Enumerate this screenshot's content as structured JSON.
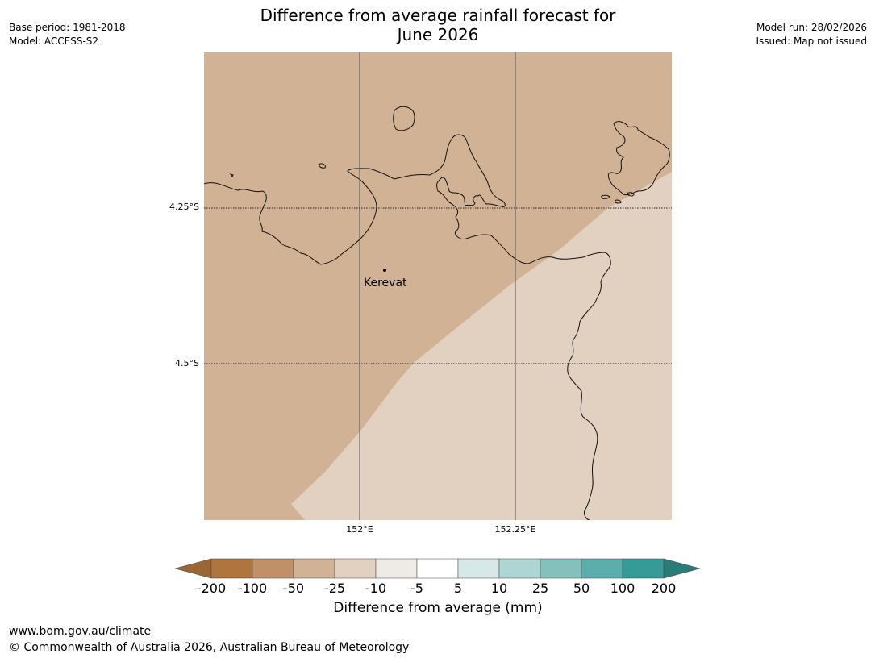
{
  "title_line1": "Difference from average rainfall forecast for",
  "title_line2": "June 2026",
  "meta_left": [
    "Base period: 1981-2018",
    "Model: ACCESS-S2"
  ],
  "meta_right": [
    "Model run: 28/02/2026",
    "Issued: Map not issued"
  ],
  "map": {
    "lat_labels": [
      "4.25°S",
      "4.5°S"
    ],
    "lon_labels": [
      "152°E",
      "152.25°E"
    ],
    "place_label": "Kerevat",
    "regions": [
      {
        "category": "-50 to -25",
        "color": "#d1b295"
      },
      {
        "category": "-25 to -10",
        "color": "#e2d0c0"
      }
    ]
  },
  "colorbar": {
    "ticks": [
      "-200",
      "-100",
      "-50",
      "-25",
      "-10",
      "-5",
      "5",
      "10",
      "25",
      "50",
      "100",
      "200"
    ],
    "colors": [
      "#9a6633",
      "#af753e",
      "#c09068",
      "#d1b295",
      "#e2d0c0",
      "#eeeae6",
      "#ffffff",
      "#d6e8e8",
      "#acd5d3",
      "#84c1bd",
      "#5baeac",
      "#349b98",
      "#2a7c79"
    ],
    "label": "Difference from average (mm)"
  },
  "footer": {
    "url": "www.bom.gov.au/climate",
    "copyright": "© Commonwealth of Australia 2026, Australian Bureau of Meteorology"
  }
}
